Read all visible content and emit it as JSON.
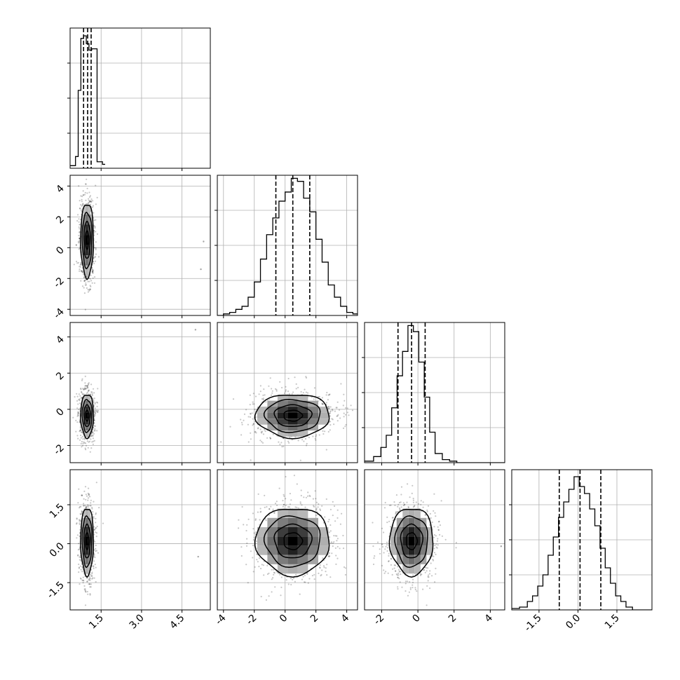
{
  "chart_data": {
    "type": "corner",
    "grid": true,
    "dimensions": [
      {
        "ticks": [
          "1.5",
          "3.0",
          "4.5"
        ],
        "tick_values": [
          1.5,
          3.0,
          4.5
        ],
        "range": [
          0.35,
          5.55
        ],
        "quantiles": [
          0.85,
          1.0,
          1.13
        ],
        "hist_edges": [
          0.35,
          0.55,
          0.65,
          0.75,
          0.85,
          0.95,
          1.05,
          1.15,
          1.25,
          1.35,
          1.45,
          1.55,
          1.65
        ],
        "hist_counts": [
          2,
          9,
          60,
          100,
          102,
          96,
          91,
          92,
          92,
          5,
          5,
          3
        ],
        "hist_max": 108
      },
      {
        "ticks": [
          "-4",
          "-2",
          "0",
          "2",
          "4"
        ],
        "tick_values": [
          -4,
          -2,
          0,
          2,
          4
        ],
        "range": [
          -4.4,
          4.7
        ],
        "quantiles": [
          -0.6,
          0.5,
          1.6
        ],
        "hist_edges": [
          -4.4,
          -4.0,
          -3.6,
          -3.2,
          -2.8,
          -2.4,
          -2.0,
          -1.6,
          -1.2,
          -0.8,
          -0.4,
          0.0,
          0.4,
          0.8,
          1.2,
          1.6,
          2.0,
          2.4,
          2.8,
          3.2,
          3.6,
          4.0,
          4.4,
          4.7
        ],
        "hist_counts": [
          0,
          1,
          2,
          4,
          6,
          12,
          22,
          37,
          53,
          64,
          75,
          81,
          90,
          88,
          77,
          68,
          50,
          35,
          20,
          12,
          6,
          2,
          1
        ],
        "hist_max": 92
      },
      {
        "ticks": [
          "-2",
          "0",
          "2",
          "4"
        ],
        "tick_values": [
          -2,
          0,
          2,
          4
        ],
        "range": [
          -2.95,
          4.8
        ],
        "quantiles": [
          -1.1,
          -0.35,
          0.4
        ],
        "hist_edges": [
          -2.95,
          -2.45,
          -2.05,
          -1.75,
          -1.45,
          -1.15,
          -0.85,
          -0.55,
          -0.25,
          0.05,
          0.35,
          0.65,
          0.95,
          1.35,
          1.75,
          2.15,
          2.6,
          3.1,
          4.8
        ],
        "hist_counts": [
          1,
          4,
          10,
          18,
          36,
          57,
          73,
          90,
          86,
          66,
          43,
          20,
          6,
          2,
          1,
          0,
          0,
          0
        ],
        "hist_max": 92
      },
      {
        "ticks": [
          "-1.5",
          "0.0",
          "1.5"
        ],
        "tick_values": [
          -1.5,
          0.0,
          1.5
        ],
        "range": [
          -2.55,
          2.85
        ],
        "quantiles": [
          -0.72,
          0.08,
          0.88
        ],
        "hist_edges": [
          -2.55,
          -2.25,
          -1.95,
          -1.75,
          -1.55,
          -1.35,
          -1.15,
          -0.95,
          -0.75,
          -0.55,
          -0.35,
          -0.15,
          0.05,
          0.25,
          0.45,
          0.65,
          0.85,
          1.05,
          1.25,
          1.45,
          1.65,
          1.85,
          2.1,
          2.85
        ],
        "hist_counts": [
          1,
          2,
          6,
          10,
          17,
          25,
          39,
          52,
          66,
          77,
          86,
          95,
          88,
          83,
          72,
          60,
          44,
          30,
          19,
          10,
          6,
          2,
          0
        ],
        "hist_max": 100
      }
    ],
    "means": [
      0.98,
      0.5,
      -0.35,
      0.1
    ],
    "sigmas": [
      0.12,
      1.2,
      0.6,
      0.65
    ],
    "outliers": [
      {
        "i": 0,
        "j": 1,
        "xy": [
          5.3,
          0.4
        ]
      },
      {
        "i": 0,
        "j": 1,
        "xy": [
          5.2,
          -1.4
        ]
      },
      {
        "i": 0,
        "j": 2,
        "xy": [
          5.0,
          4.4
        ]
      },
      {
        "i": 0,
        "j": 3,
        "xy": [
          5.1,
          -0.5
        ]
      },
      {
        "i": 2,
        "j": 3,
        "xy": [
          4.6,
          -0.1
        ]
      }
    ]
  }
}
